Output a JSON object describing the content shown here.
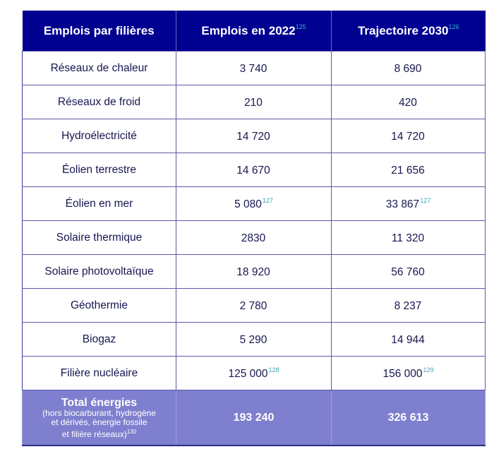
{
  "table": {
    "headers": [
      {
        "label": "Emplois par filières",
        "note": ""
      },
      {
        "label": "Emplois en 2022",
        "note": "125"
      },
      {
        "label": "Trajectoire 2030",
        "note": "126"
      }
    ],
    "rows": [
      {
        "filiere": "Réseaux de chaleur",
        "y2022": "3 740",
        "y2022_note": "",
        "y2030": "8 690",
        "y2030_note": ""
      },
      {
        "filiere": "Réseaux de froid",
        "y2022": "210",
        "y2022_note": "",
        "y2030": "420",
        "y2030_note": ""
      },
      {
        "filiere": "Hydroélectricité",
        "y2022": "14 720",
        "y2022_note": "",
        "y2030": "14 720",
        "y2030_note": ""
      },
      {
        "filiere": "Éolien terrestre",
        "y2022": "14 670",
        "y2022_note": "",
        "y2030": "21 656",
        "y2030_note": ""
      },
      {
        "filiere": "Éolien en mer",
        "y2022": "5 080",
        "y2022_note": "127",
        "y2030": "33 867",
        "y2030_note": "127"
      },
      {
        "filiere": "Solaire thermique",
        "y2022": "2830",
        "y2022_note": "",
        "y2030": "11 320",
        "y2030_note": ""
      },
      {
        "filiere": "Solaire photovoltaïque",
        "y2022": "18 920",
        "y2022_note": "",
        "y2030": "56 760",
        "y2030_note": ""
      },
      {
        "filiere": "Géothermie",
        "y2022": "2 780",
        "y2022_note": "",
        "y2030": "8 237",
        "y2030_note": ""
      },
      {
        "filiere": "Biogaz",
        "y2022": "5 290",
        "y2022_note": "",
        "y2030": "14 944",
        "y2030_note": ""
      },
      {
        "filiere": "Filière nucléaire",
        "y2022": "125 000",
        "y2022_note": "128",
        "y2030": "156 000",
        "y2030_note": "129"
      }
    ],
    "total": {
      "title": "Total énergies",
      "subtitle_lines": [
        "(hors biocarburant, hydrogène",
        "et dérivés, énergie fossile",
        "et filière réseaux)"
      ],
      "subtitle_note": "130",
      "y2022": "193 240",
      "y2030": "326 613"
    }
  },
  "colors": {
    "header_bg": "#000091",
    "total_bg": "#7f7fcf",
    "text": "#161650",
    "note": "#3aa7b8"
  }
}
